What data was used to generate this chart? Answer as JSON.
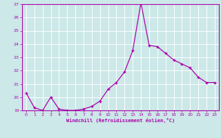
{
  "x": [
    0,
    1,
    2,
    3,
    4,
    5,
    6,
    7,
    8,
    9,
    10,
    11,
    12,
    13,
    14,
    15,
    16,
    17,
    18,
    19,
    20,
    21,
    22,
    23
  ],
  "y": [
    20.3,
    19.2,
    19.0,
    20.0,
    19.1,
    19.0,
    19.0,
    19.1,
    19.3,
    19.7,
    20.6,
    21.1,
    21.9,
    23.5,
    27.1,
    23.9,
    23.8,
    23.3,
    22.8,
    22.5,
    22.2,
    21.5,
    21.1,
    21.1
  ],
  "xlabel": "Windchill (Refroidissement éolien,°C)",
  "ylim": [
    19,
    27
  ],
  "yticks": [
    19,
    20,
    21,
    22,
    23,
    24,
    25,
    26,
    27
  ],
  "xticks": [
    0,
    1,
    2,
    3,
    4,
    5,
    6,
    7,
    8,
    9,
    10,
    11,
    12,
    13,
    14,
    15,
    16,
    17,
    18,
    19,
    20,
    21,
    22,
    23
  ],
  "line_color": "#aa00aa",
  "marker": "+",
  "bg_color": "#cce8e8",
  "grid_color": "#b0d0d0",
  "tick_color": "#aa00aa",
  "label_color": "#aa00aa",
  "spine_color": "#aa00aa"
}
